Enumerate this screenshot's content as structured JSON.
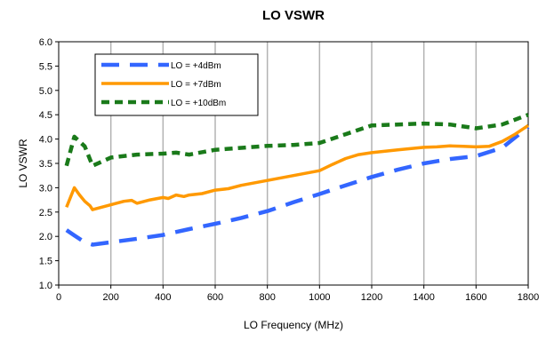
{
  "chart_data": {
    "type": "line",
    "title": "LO VSWR",
    "xlabel": "LO Frequency (MHz)",
    "ylabel": "LO VSWR",
    "xlim": [
      0,
      1800
    ],
    "ylim": [
      1.0,
      6.0
    ],
    "xticks": [
      0,
      200,
      400,
      600,
      800,
      1000,
      1200,
      1400,
      1600,
      1800
    ],
    "yticks": [
      1.0,
      1.5,
      2.0,
      2.5,
      3.0,
      3.5,
      4.0,
      4.5,
      5.0,
      5.5,
      6.0
    ],
    "xtick_labels": [
      "0",
      "200",
      "400",
      "600",
      "800",
      "1000",
      "1200",
      "1400",
      "1600",
      "1800"
    ],
    "ytick_labels": [
      "1.0",
      "1.5",
      "2.0",
      "2.5",
      "3.0",
      "3.5",
      "4.0",
      "4.5",
      "5.0",
      "5.5",
      "6.0"
    ],
    "grid": "vertical",
    "legend_position": "top-left",
    "series": [
      {
        "name": "LO = +4dBm",
        "color": "#3366ff",
        "style": "long-dash",
        "x": [
          30,
          60,
          100,
          130,
          200,
          300,
          400,
          500,
          600,
          700,
          800,
          900,
          1000,
          1100,
          1200,
          1300,
          1400,
          1500,
          1600,
          1700,
          1800
        ],
        "y": [
          2.13,
          2.02,
          1.88,
          1.83,
          1.88,
          1.95,
          2.03,
          2.15,
          2.26,
          2.38,
          2.52,
          2.7,
          2.87,
          3.05,
          3.22,
          3.37,
          3.5,
          3.59,
          3.65,
          3.82,
          4.25
        ]
      },
      {
        "name": "LO = +7dBm",
        "color": "#ff9900",
        "style": "solid",
        "x": [
          30,
          60,
          80,
          100,
          120,
          130,
          200,
          250,
          280,
          300,
          350,
          400,
          420,
          450,
          480,
          500,
          550,
          600,
          650,
          700,
          800,
          900,
          1000,
          1050,
          1100,
          1150,
          1200,
          1300,
          1400,
          1450,
          1500,
          1550,
          1600,
          1650,
          1700,
          1750,
          1800
        ],
        "y": [
          2.6,
          3.0,
          2.85,
          2.72,
          2.63,
          2.55,
          2.65,
          2.72,
          2.74,
          2.68,
          2.75,
          2.8,
          2.78,
          2.85,
          2.82,
          2.85,
          2.88,
          2.95,
          2.98,
          3.05,
          3.15,
          3.25,
          3.35,
          3.48,
          3.6,
          3.68,
          3.72,
          3.78,
          3.83,
          3.84,
          3.86,
          3.85,
          3.84,
          3.85,
          3.95,
          4.1,
          4.28
        ]
      },
      {
        "name": "LO = +10dBm",
        "color": "#1a7a1a",
        "style": "dash",
        "x": [
          30,
          60,
          100,
          130,
          200,
          300,
          400,
          450,
          500,
          600,
          700,
          800,
          900,
          1000,
          1100,
          1200,
          1300,
          1400,
          1500,
          1600,
          1700,
          1800
        ],
        "y": [
          3.45,
          4.05,
          3.85,
          3.45,
          3.62,
          3.68,
          3.7,
          3.72,
          3.68,
          3.78,
          3.82,
          3.86,
          3.88,
          3.92,
          4.1,
          4.28,
          4.3,
          4.32,
          4.3,
          4.22,
          4.3,
          4.5
        ]
      }
    ]
  }
}
